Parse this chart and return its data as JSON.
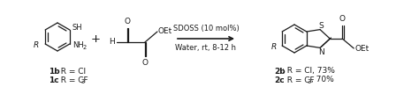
{
  "figsize": [
    4.74,
    0.99
  ],
  "dpi": 100,
  "bg_color": "#ffffff",
  "reagent_text": "SDOSS (10 mol%)",
  "condition_text": "Water, rt, 8-12 h",
  "label1b_bold": "1b",
  "label1b_rest": ": R = Cl",
  "label1c_bold": "1c",
  "label1c_rest": ": R = CF",
  "label1c_sub": "3",
  "label2b_bold": "2b",
  "label2b_rest": ": R = Cl, 73%",
  "label2c_bold": "2c",
  "label2c_rest": ": R = CF",
  "label2c_sub": "3",
  "label2c_rest2": ", 70%",
  "plus_text": "+",
  "text_color": "#1a1a1a",
  "font_size": 6.5,
  "font_size_small": 4.8,
  "font_size_bold": 6.5
}
